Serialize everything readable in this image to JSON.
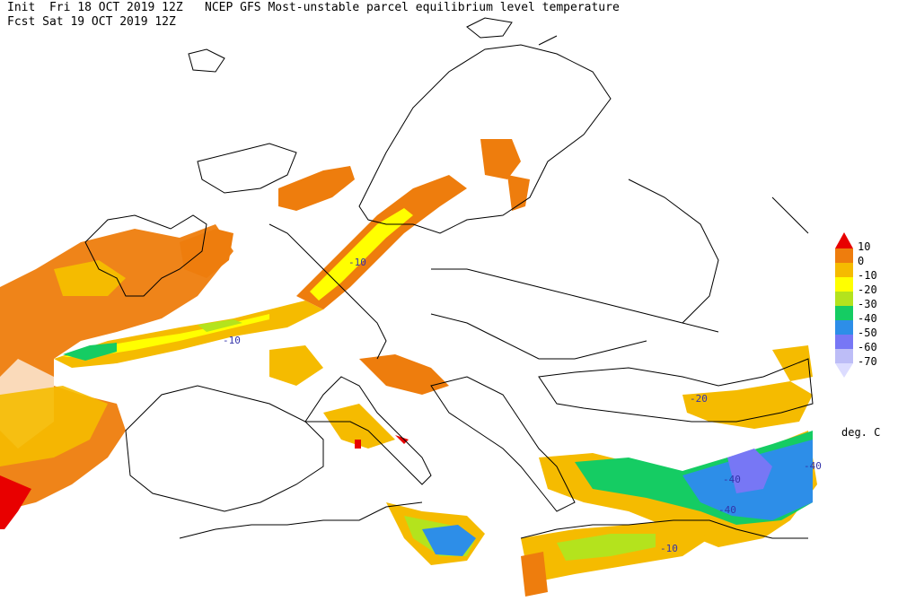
{
  "header": {
    "init_line": "Init  Fri 18 OCT 2019 12Z",
    "title": "NCEP GFS Most-unstable parcel equilibrium level temperature",
    "fcst_line": "Fcst Sat 19 OCT 2019 12Z"
  },
  "legend": {
    "units": "deg. C",
    "top_value": "10",
    "entries": [
      {
        "label": "0",
        "color": "#ee7d0d"
      },
      {
        "label": "-10",
        "color": "#f5bb00"
      },
      {
        "label": "-20",
        "color": "#ffff00"
      },
      {
        "label": "-30",
        "color": "#b4e31d"
      },
      {
        "label": "-40",
        "color": "#15cc63"
      },
      {
        "label": "-50",
        "color": "#2d8ee8"
      },
      {
        "label": "-60",
        "color": "#7777f5"
      },
      {
        "label": "-70",
        "color": "#bdbdf7"
      }
    ],
    "top_color": "#e80000",
    "bottom_color": "#dcdcff"
  },
  "map_labels": [
    {
      "text": "-10",
      "color": "#3333aa"
    },
    {
      "text": "-10",
      "color": "#3333aa"
    },
    {
      "text": "-20",
      "color": "#3333aa"
    },
    {
      "text": "-40",
      "color": "#3333aa"
    },
    {
      "text": "-40",
      "color": "#3333aa"
    },
    {
      "text": "-40",
      "color": "#3333aa"
    },
    {
      "text": "-10",
      "color": "#3333aa"
    }
  ]
}
